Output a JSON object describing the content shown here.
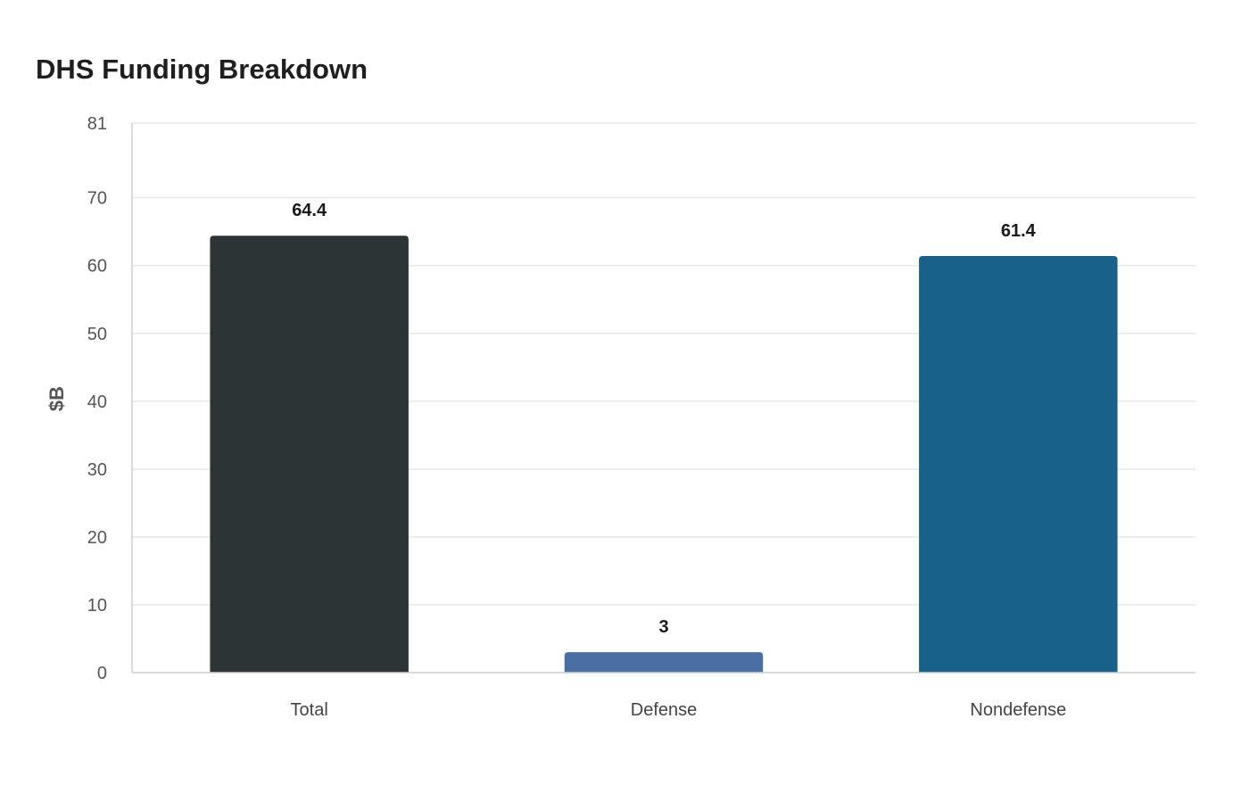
{
  "chart_data": {
    "type": "bar",
    "title": "DHS Funding Breakdown",
    "ylabel": "$B",
    "xlabel": "",
    "categories": [
      "Total",
      "Defense",
      "Nondefense"
    ],
    "values": [
      64.4,
      3,
      61.4
    ],
    "data_labels": [
      "64.4",
      "3",
      "61.4"
    ],
    "colors": [
      "#2d3436",
      "#4a6fa5",
      "#17618a"
    ],
    "ylim": [
      0,
      81
    ],
    "yticks": [
      0,
      10,
      20,
      30,
      40,
      50,
      60,
      70,
      81
    ],
    "grid": true,
    "legend": "none"
  }
}
